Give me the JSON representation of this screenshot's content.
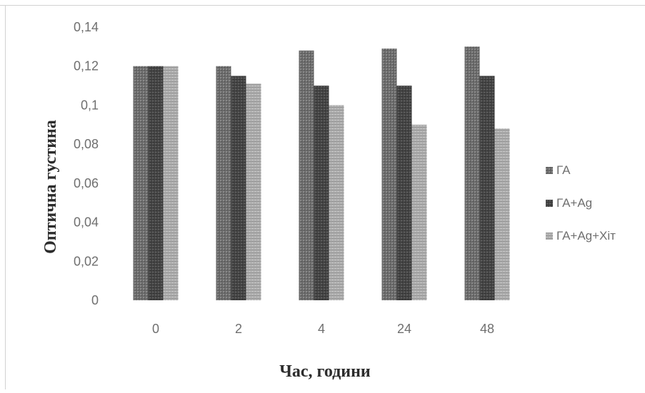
{
  "chart_data": {
    "type": "bar",
    "title": "",
    "xlabel": "Час, години",
    "ylabel": "Оптична густина",
    "categories": [
      "0",
      "2",
      "4",
      "24",
      "48"
    ],
    "yticks": [
      "0",
      "0,02",
      "0,04",
      "0,06",
      "0,08",
      "0,1",
      "0,12",
      "0,14"
    ],
    "ylim": [
      0,
      0.14
    ],
    "grid": false,
    "legend_position": "right",
    "series": [
      {
        "name": "ГА",
        "values": [
          0.12,
          0.12,
          0.128,
          0.129,
          0.13
        ],
        "color": "#5f5f5f"
      },
      {
        "name": "ГА+Ag",
        "values": [
          0.12,
          0.115,
          0.11,
          0.11,
          0.115
        ],
        "color": "#3e3e3e"
      },
      {
        "name": "ГА+Ag+Хіт",
        "values": [
          0.12,
          0.111,
          0.1,
          0.09,
          0.088
        ],
        "color": "#a5a5a5"
      }
    ]
  }
}
